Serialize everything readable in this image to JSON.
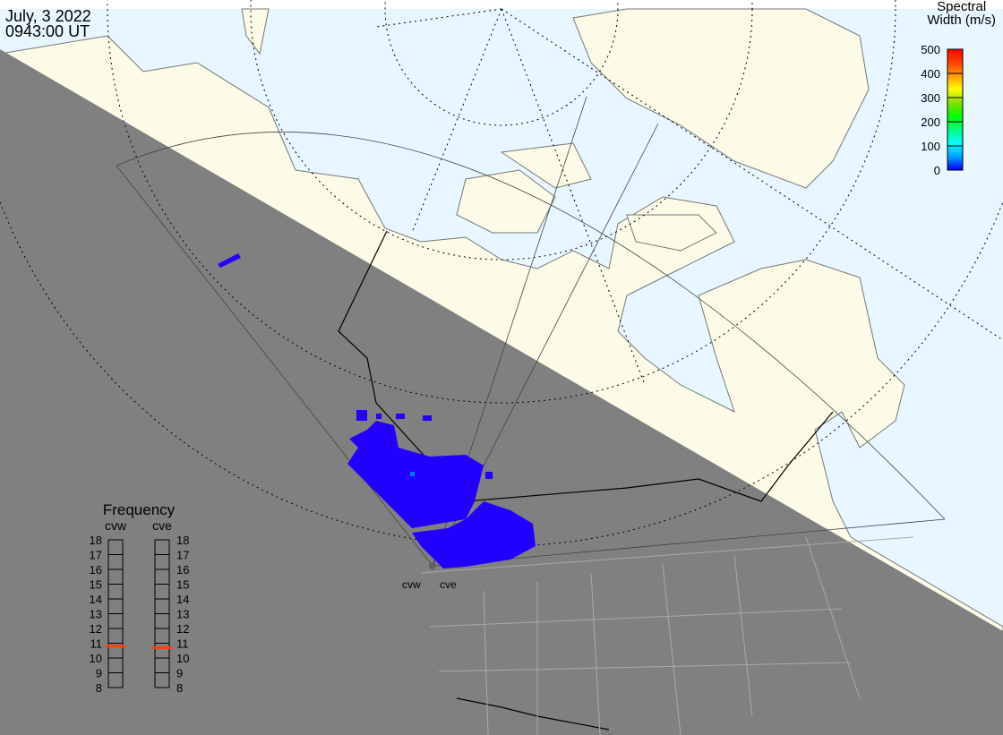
{
  "header": {
    "date": "July, 3 2022",
    "time": "0943:00 UT"
  },
  "colorbar": {
    "title_line1": "Spectral",
    "title_line2": "Width (m/s)",
    "ticks": [
      "500",
      "400",
      "300",
      "200",
      "100",
      "0"
    ],
    "range": [
      0,
      500
    ],
    "colors": [
      "#0000ff",
      "#00a0ff",
      "#00ffff",
      "#00ff80",
      "#00ff00",
      "#80e000",
      "#ffff00",
      "#ffa000",
      "#ff4000",
      "#ff0000"
    ]
  },
  "frequency_panel": {
    "title": "Frequency",
    "unit_range": [
      8,
      18
    ],
    "ticks": [
      "18",
      "17",
      "16",
      "15",
      "14",
      "13",
      "12",
      "11",
      "10",
      "9",
      "8"
    ],
    "radars": [
      {
        "name": "cvw",
        "frequency_mhz": 10.8
      },
      {
        "name": "cve",
        "frequency_mhz": 10.7
      }
    ],
    "marker_color": "#ff4000"
  },
  "radars": {
    "labels": [
      "cvw",
      "cve"
    ]
  },
  "colors": {
    "ocean": "#e8f6ff",
    "land": "#fcfbe8",
    "night": "#808080",
    "echo": "#2200ff"
  }
}
